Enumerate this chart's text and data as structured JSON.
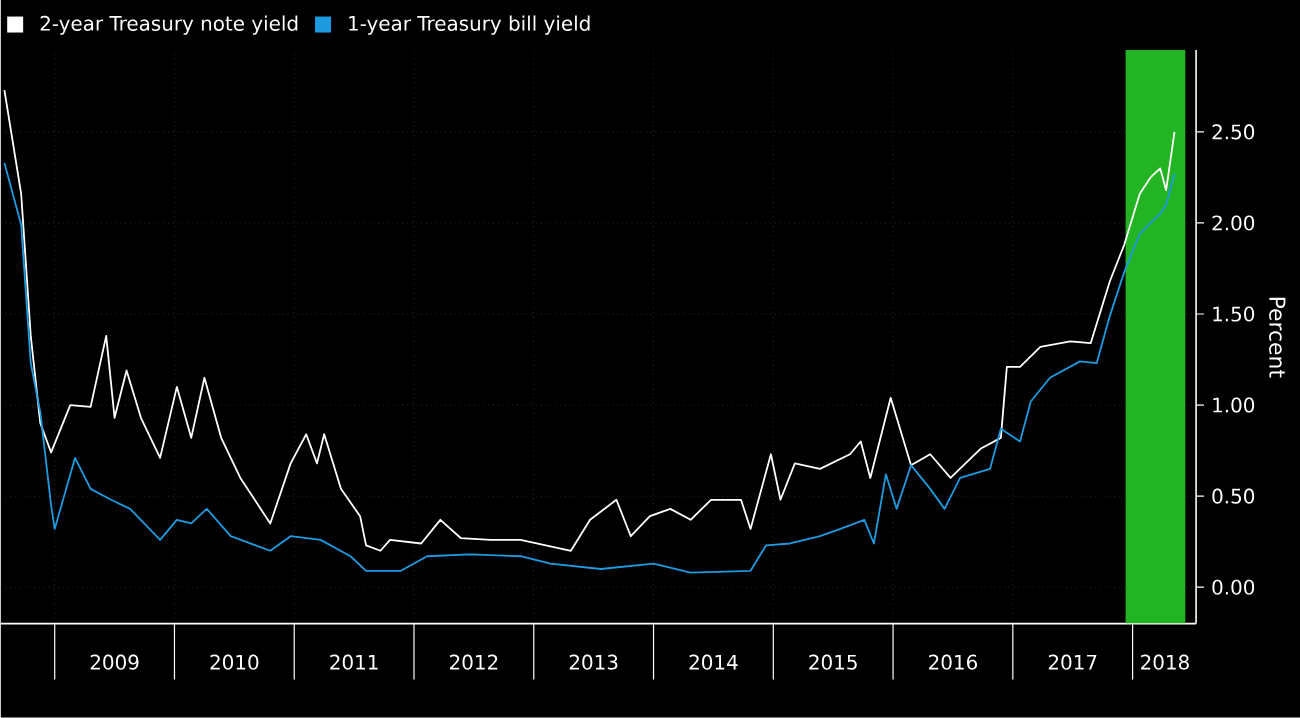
{
  "chart_data": {
    "type": "line",
    "series": [
      {
        "name": "2-year Treasury note yield",
        "color": "#ffffff",
        "x": [
          2008.58,
          2008.72,
          2008.8,
          2008.88,
          2008.97,
          2009.13,
          2009.3,
          2009.43,
          2009.5,
          2009.6,
          2009.72,
          2009.88,
          2010.02,
          2010.14,
          2010.25,
          2010.39,
          2010.55,
          2010.8,
          2010.97,
          2011.1,
          2011.19,
          2011.25,
          2011.39,
          2011.55,
          2011.6,
          2011.72,
          2011.8,
          2012.06,
          2012.22,
          2012.39,
          2012.64,
          2012.89,
          2013.31,
          2013.47,
          2013.69,
          2013.81,
          2013.97,
          2014.14,
          2014.31,
          2014.48,
          2014.73,
          2014.81,
          2014.98,
          2015.06,
          2015.18,
          2015.39,
          2015.64,
          2015.73,
          2015.81,
          2015.98,
          2016.15,
          2016.31,
          2016.48,
          2016.73,
          2016.9,
          2016.95,
          2017.06,
          2017.23,
          2017.48,
          2017.65,
          2017.81,
          2017.93,
          2018.06,
          2018.15,
          2018.23,
          2018.28,
          2018.35
        ],
        "values": [
          2.73,
          2.16,
          1.38,
          0.9,
          0.74,
          1.0,
          0.99,
          1.38,
          0.93,
          1.19,
          0.93,
          0.71,
          1.1,
          0.82,
          1.15,
          0.82,
          0.6,
          0.35,
          0.68,
          0.84,
          0.68,
          0.84,
          0.54,
          0.39,
          0.23,
          0.2,
          0.26,
          0.24,
          0.37,
          0.27,
          0.26,
          0.26,
          0.2,
          0.37,
          0.48,
          0.28,
          0.39,
          0.43,
          0.37,
          0.48,
          0.48,
          0.32,
          0.73,
          0.48,
          0.68,
          0.65,
          0.73,
          0.8,
          0.6,
          1.04,
          0.67,
          0.73,
          0.6,
          0.76,
          0.82,
          1.21,
          1.21,
          1.32,
          1.35,
          1.34,
          1.68,
          1.88,
          2.16,
          2.25,
          2.3,
          2.18,
          2.5
        ]
      },
      {
        "name": "1-year Treasury bill yield",
        "color": "#1e9be0",
        "x": [
          2008.58,
          2008.72,
          2008.8,
          2008.88,
          2008.97,
          2009.0,
          2009.17,
          2009.3,
          2009.47,
          2009.63,
          2009.88,
          2010.02,
          2010.14,
          2010.27,
          2010.47,
          2010.8,
          2010.97,
          2011.22,
          2011.47,
          2011.6,
          2011.89,
          2012.11,
          2012.47,
          2012.89,
          2013.14,
          2013.56,
          2014.0,
          2014.31,
          2014.81,
          2014.94,
          2015.14,
          2015.39,
          2015.56,
          2015.76,
          2015.84,
          2015.94,
          2016.03,
          2016.15,
          2016.31,
          2016.43,
          2016.56,
          2016.81,
          2016.9,
          2017.06,
          2017.15,
          2017.31,
          2017.56,
          2017.7,
          2017.81,
          2017.93,
          2018.06,
          2018.15,
          2018.23,
          2018.28,
          2018.35
        ],
        "values": [
          2.33,
          1.99,
          1.23,
          0.96,
          0.45,
          0.32,
          0.71,
          0.54,
          0.48,
          0.43,
          0.26,
          0.37,
          0.35,
          0.43,
          0.28,
          0.2,
          0.28,
          0.26,
          0.17,
          0.09,
          0.09,
          0.17,
          0.18,
          0.17,
          0.13,
          0.1,
          0.13,
          0.08,
          0.09,
          0.23,
          0.24,
          0.28,
          0.32,
          0.37,
          0.24,
          0.62,
          0.43,
          0.67,
          0.54,
          0.43,
          0.6,
          0.65,
          0.87,
          0.8,
          1.02,
          1.15,
          1.24,
          1.23,
          1.49,
          1.73,
          1.94,
          2.0,
          2.05,
          2.1,
          2.27
        ]
      }
    ],
    "ylabel": "Percent",
    "xlim": [
      2008.55,
      2018.53
    ],
    "xticks": [
      {
        "value": 2009,
        "label": null
      },
      {
        "value": 2009.5,
        "label": "2009"
      },
      {
        "value": 2010,
        "label": null
      },
      {
        "value": 2010.5,
        "label": "2010"
      },
      {
        "value": 2011,
        "label": null
      },
      {
        "value": 2011.5,
        "label": "2011"
      },
      {
        "value": 2012,
        "label": null
      },
      {
        "value": 2012.5,
        "label": "2012"
      },
      {
        "value": 2013,
        "label": null
      },
      {
        "value": 2013.5,
        "label": "2013"
      },
      {
        "value": 2014,
        "label": null
      },
      {
        "value": 2014.5,
        "label": "2014"
      },
      {
        "value": 2015,
        "label": null
      },
      {
        "value": 2015.5,
        "label": "2015"
      },
      {
        "value": 2016,
        "label": null
      },
      {
        "value": 2016.5,
        "label": "2016"
      },
      {
        "value": 2017,
        "label": null
      },
      {
        "value": 2017.5,
        "label": "2017"
      },
      {
        "value": 2018,
        "label": null
      },
      {
        "value": 2018.27,
        "label": "2018"
      }
    ],
    "ylim": [
      -0.2,
      2.95
    ],
    "yticks": [
      {
        "value": 0,
        "label": "0.00"
      },
      {
        "value": 0.5,
        "label": "0.50"
      },
      {
        "value": 1,
        "label": "1.00"
      },
      {
        "value": 1.5,
        "label": "1.50"
      },
      {
        "value": 2,
        "label": "2.00"
      },
      {
        "value": 2.5,
        "label": "2.50"
      }
    ],
    "bands": [
      {
        "axis": "x",
        "from": 2017.94,
        "to": 2018.44,
        "color": "#22b422"
      }
    ],
    "grid": true,
    "legend": "top left",
    "marker": "none",
    "line_style": "solid"
  }
}
